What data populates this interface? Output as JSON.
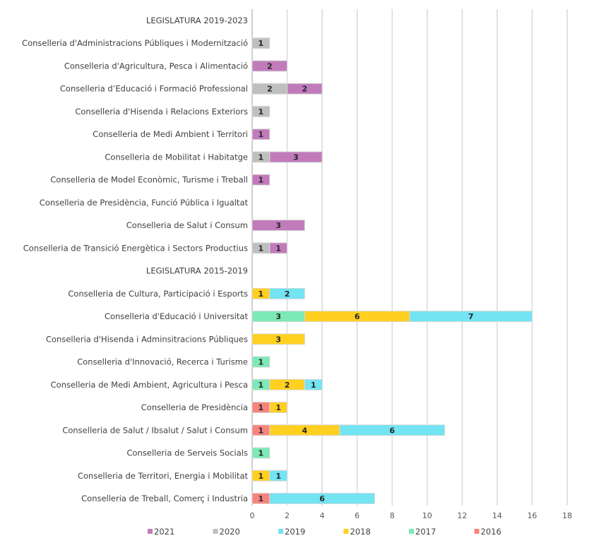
{
  "chart_data": {
    "type": "bar",
    "orientation": "horizontal",
    "stacked": true,
    "title": "",
    "xlabel": "",
    "ylabel": "",
    "xlim": [
      0,
      18
    ],
    "x_ticks": [
      0,
      2,
      4,
      6,
      8,
      10,
      12,
      14,
      16,
      18
    ],
    "grid": true,
    "legend_position": "bottom",
    "categories": [
      "LEGISLATURA 2019-2023",
      "Conselleria d'Administracions Públiques i Modernització",
      "Conselleria d'Agricultura, Pesca i Alimentació",
      "Conselleria d’Educació i Formació Professional",
      "Conselleria d'Hisenda i Relacions Exteriors",
      "Conselleria de Medi Ambient i Territori",
      "Conselleria de  Mobilitat i Habitatge",
      "Conselleria de Model Econòmic, Turisme i Treball",
      "Conselleria de Presidència, Funció Pública i Igualtat",
      "Conselleria de Salut i Consum",
      "Conselleria de Transició Energètica i Sectors Productius",
      "LEGISLATURA 2015-2019",
      "Conselleria de Cultura, Participació i Esports",
      "Conselleria d'Educació i Universitat",
      "Conselleria d'Hisenda i Adminsitracions Públiques",
      "Conselleria d'Innovació, Recerca i Turisme",
      "Conselleria de Medi Ambient, Agricultura i Pesca",
      "Conselleria de Presidència",
      "Conselleria de Salut / Ibsalut / Salut i Consum",
      "Conselleria de Serveis Socials",
      "Conselleria de Territori, Energia i Mobilitat",
      "Conselleria de Treball, Comerç i Industria"
    ],
    "stack_order": [
      "2016",
      "2017",
      "2018",
      "2019",
      "2020",
      "2021"
    ],
    "series": [
      {
        "name": "2021",
        "color": "#c17bbb",
        "values": [
          0,
          0,
          2,
          2,
          0,
          1,
          3,
          1,
          0,
          3,
          1,
          0,
          0,
          0,
          0,
          0,
          0,
          0,
          0,
          0,
          0,
          0
        ]
      },
      {
        "name": "2020",
        "color": "#bfbfbf",
        "values": [
          0,
          1,
          0,
          2,
          1,
          0,
          1,
          0,
          0,
          0,
          1,
          0,
          0,
          0,
          0,
          0,
          0,
          0,
          0,
          0,
          0,
          0
        ]
      },
      {
        "name": "2019",
        "color": "#72e4f2",
        "values": [
          0,
          0,
          0,
          0,
          0,
          0,
          0,
          0,
          0,
          0,
          0,
          0,
          2,
          7,
          0,
          0,
          1,
          0,
          6,
          0,
          1,
          6
        ]
      },
      {
        "name": "2018",
        "color": "#ffd020",
        "values": [
          0,
          0,
          0,
          0,
          0,
          0,
          0,
          0,
          0,
          0,
          0,
          0,
          1,
          6,
          3,
          0,
          2,
          1,
          4,
          0,
          1,
          0
        ]
      },
      {
        "name": "2017",
        "color": "#7ce9b6",
        "values": [
          0,
          0,
          0,
          0,
          0,
          0,
          0,
          0,
          0,
          0,
          0,
          0,
          0,
          3,
          0,
          1,
          1,
          0,
          0,
          1,
          0,
          0
        ]
      },
      {
        "name": "2016",
        "color": "#f8837d",
        "values": [
          0,
          0,
          0,
          0,
          0,
          0,
          0,
          0,
          0,
          0,
          0,
          0,
          0,
          0,
          0,
          0,
          0,
          1,
          1,
          0,
          0,
          1
        ]
      }
    ],
    "legend": [
      "2021",
      "2020",
      "2019",
      "2018",
      "2017",
      "2016"
    ]
  },
  "colors": {
    "gridline": "#d9d9d9",
    "axis": "#bfbfbf",
    "text": "#404040"
  }
}
